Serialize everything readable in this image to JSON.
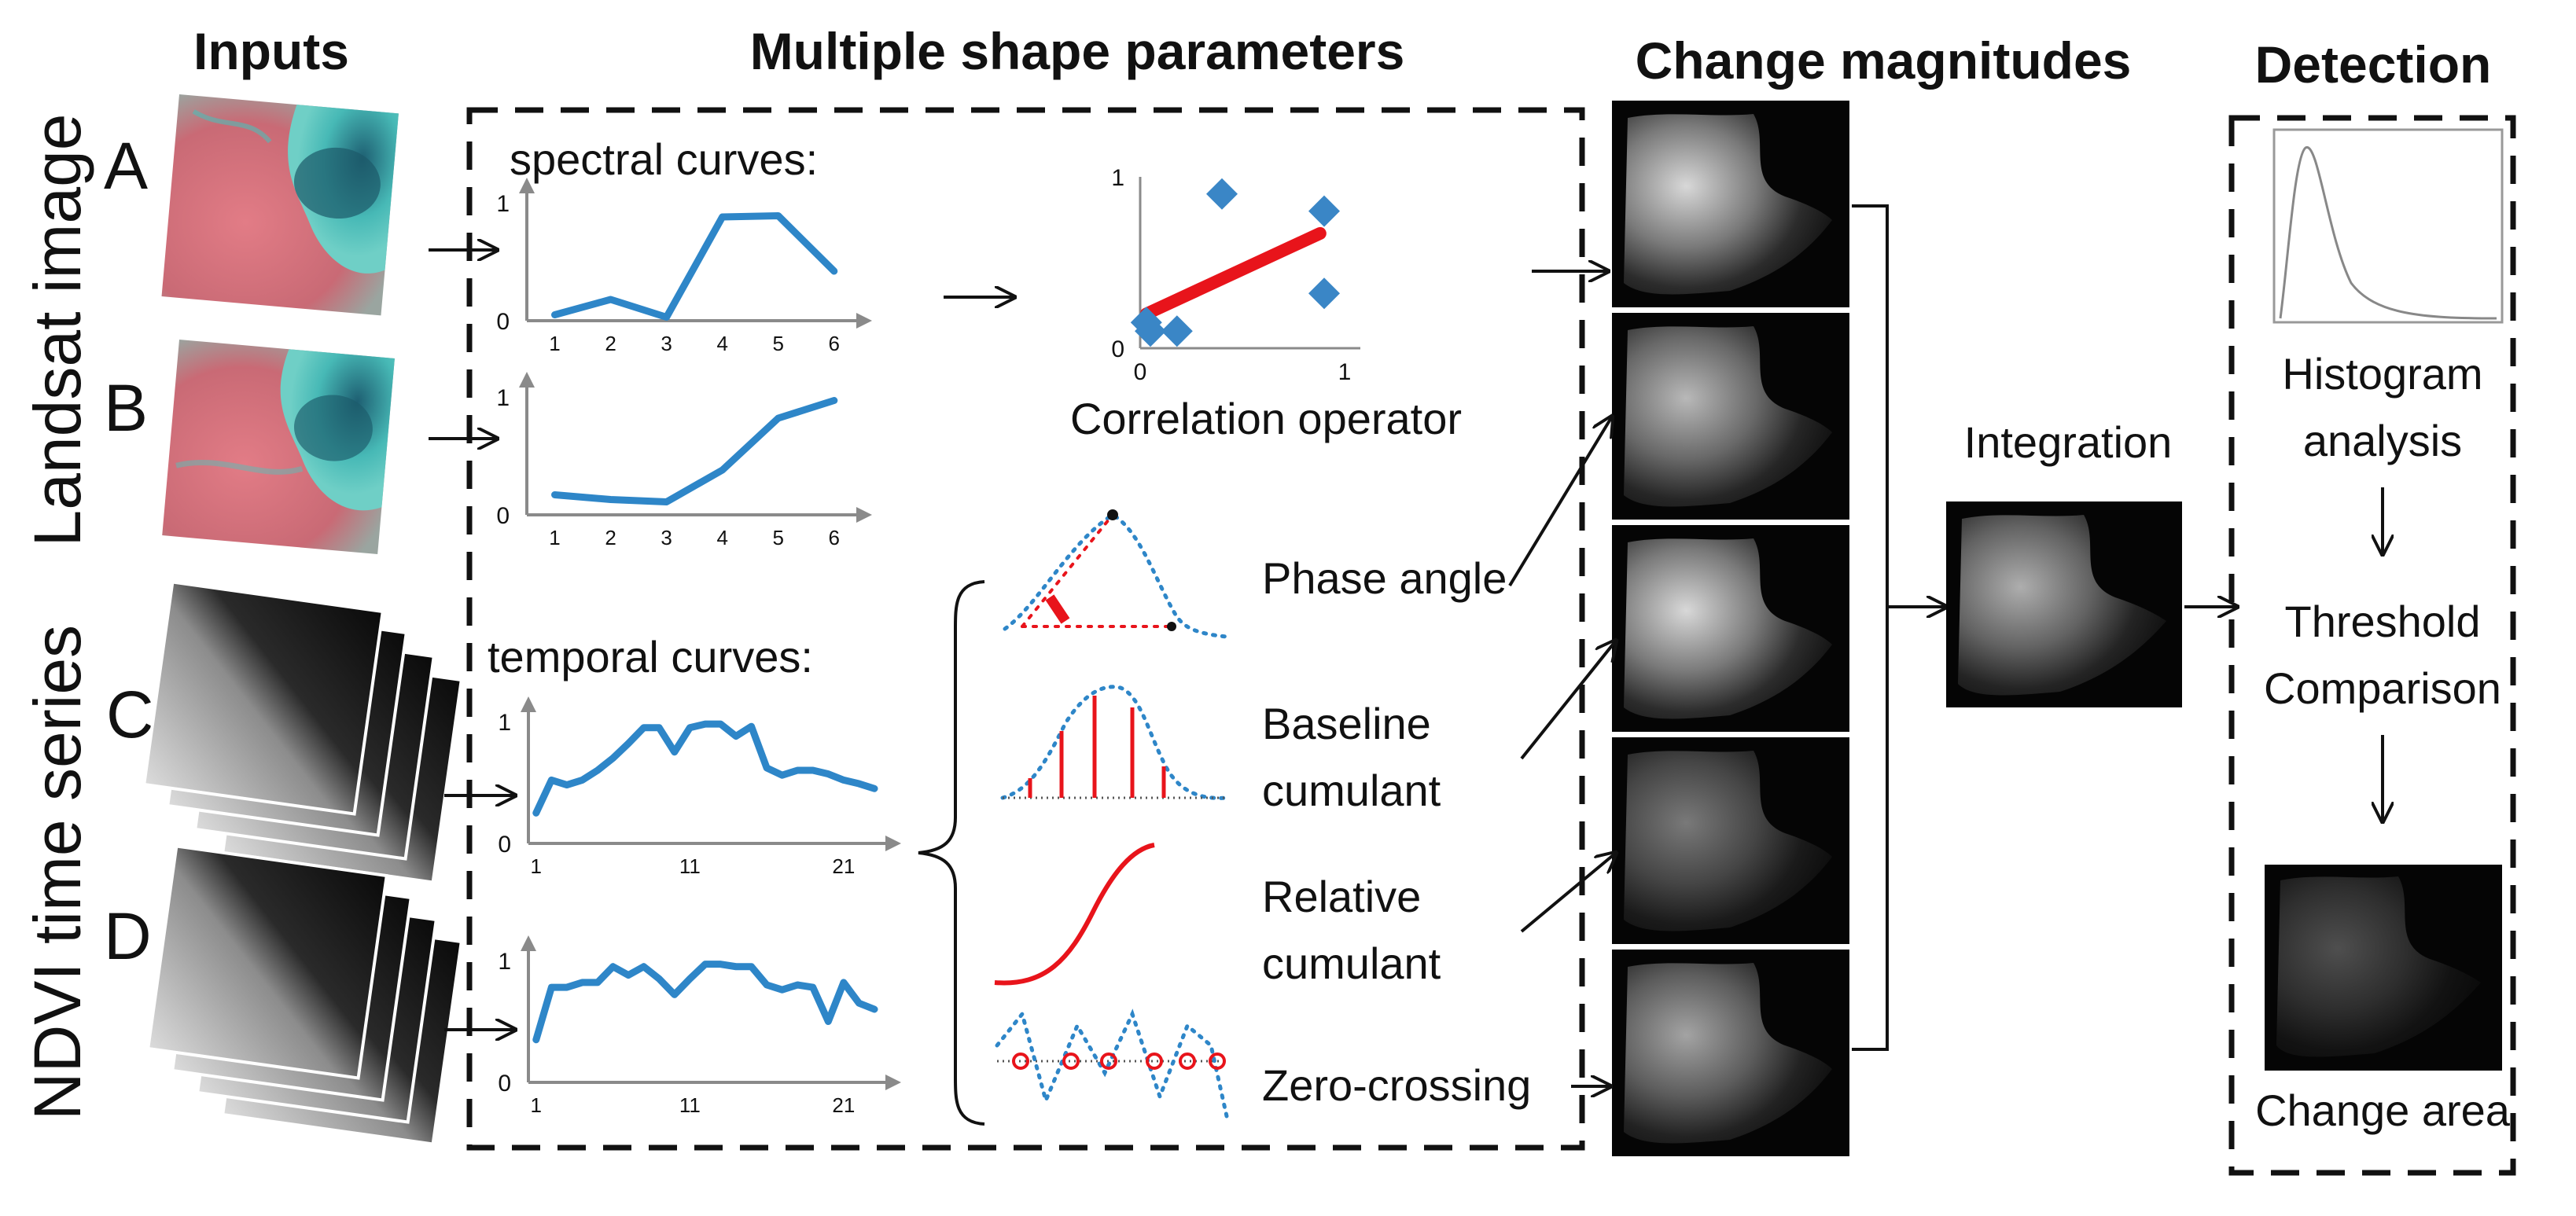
{
  "headers": {
    "inputs": "Inputs",
    "shape_params": "Multiple shape parameters",
    "magnitudes": "Change magnitudes",
    "detection": "Detection"
  },
  "side_labels": {
    "landsat": "Landsat image",
    "ndvi": "NDVI time series"
  },
  "input_letters": [
    "A",
    "B",
    "C",
    "D"
  ],
  "curve_titles": {
    "spectral": "spectral  curves:",
    "temporal": "temporal  curves:"
  },
  "correlation_label": "Correlation operator",
  "parameters": [
    "Phase angle",
    "Baseline",
    "cumulant",
    "Relative",
    "cumulant",
    "Zero-crossing"
  ],
  "integration_label": "Integration",
  "detection_steps": [
    "Histogram",
    "analysis",
    "Threshold",
    "Comparison",
    "Change area"
  ],
  "colors": {
    "curve": "#2e86c8",
    "fit_line": "#e8141b",
    "marker": "#3a86c6",
    "grey_axis": "#8a8a8a",
    "landsat_land": "#d4707a",
    "landsat_water": "#3aa9ad"
  },
  "chart_data": [
    {
      "type": "line",
      "name": "spectral curve A",
      "x": [
        1,
        2,
        3,
        4,
        5,
        6
      ],
      "y": [
        0.05,
        0.18,
        0.03,
        0.88,
        0.89,
        0.42
      ],
      "ylim": [
        0,
        1
      ],
      "x_ticks": [
        "1",
        "2",
        "3",
        "4",
        "5",
        "6"
      ],
      "y_ticks": [
        "0",
        "1"
      ]
    },
    {
      "type": "line",
      "name": "spectral curve B",
      "x": [
        1,
        2,
        3,
        4,
        5,
        6
      ],
      "y": [
        0.17,
        0.13,
        0.11,
        0.38,
        0.82,
        0.97
      ],
      "ylim": [
        0,
        1
      ],
      "x_ticks": [
        "1",
        "2",
        "3",
        "4",
        "5",
        "6"
      ],
      "y_ticks": [
        "0",
        "1"
      ]
    },
    {
      "type": "scatter",
      "name": "correlation",
      "points": [
        [
          0.03,
          0.15
        ],
        [
          0.05,
          0.1
        ],
        [
          0.18,
          0.1
        ],
        [
          0.4,
          0.9
        ],
        [
          0.9,
          0.32
        ],
        [
          0.9,
          0.8
        ]
      ],
      "fit": [
        [
          0.03,
          0.2
        ],
        [
          0.88,
          0.67
        ]
      ],
      "xlim": [
        0,
        1
      ],
      "ylim": [
        0,
        1
      ],
      "x_ticks": [
        "0",
        "1"
      ],
      "y_ticks": [
        "0",
        "1"
      ]
    },
    {
      "type": "line",
      "name": "temporal curve C",
      "x": [
        1,
        2,
        3,
        4,
        5,
        6,
        7,
        8,
        9,
        10,
        11,
        12,
        13,
        14,
        15,
        16,
        17,
        18,
        19,
        20,
        21,
        22,
        23
      ],
      "y": [
        0.25,
        0.52,
        0.48,
        0.52,
        0.6,
        0.7,
        0.82,
        0.95,
        0.95,
        0.75,
        0.95,
        0.98,
        0.98,
        0.88,
        0.96,
        0.62,
        0.56,
        0.6,
        0.6,
        0.57,
        0.52,
        0.49,
        0.45
      ],
      "ylim": [
        0,
        1
      ],
      "x_ticks": [
        "1",
        "11",
        "21"
      ],
      "y_ticks": [
        "0",
        "1"
      ]
    },
    {
      "type": "line",
      "name": "temporal curve D",
      "x": [
        1,
        2,
        3,
        4,
        5,
        6,
        7,
        8,
        9,
        10,
        11,
        12,
        13,
        14,
        15,
        16,
        17,
        18,
        19,
        20,
        21,
        22,
        23
      ],
      "y": [
        0.35,
        0.78,
        0.78,
        0.82,
        0.82,
        0.95,
        0.88,
        0.95,
        0.85,
        0.72,
        0.85,
        0.97,
        0.97,
        0.95,
        0.95,
        0.8,
        0.76,
        0.8,
        0.78,
        0.5,
        0.82,
        0.65,
        0.6
      ],
      "ylim": [
        0,
        1
      ],
      "x_ticks": [
        "1",
        "11",
        "21"
      ],
      "y_ticks": [
        "0",
        "1"
      ]
    }
  ]
}
